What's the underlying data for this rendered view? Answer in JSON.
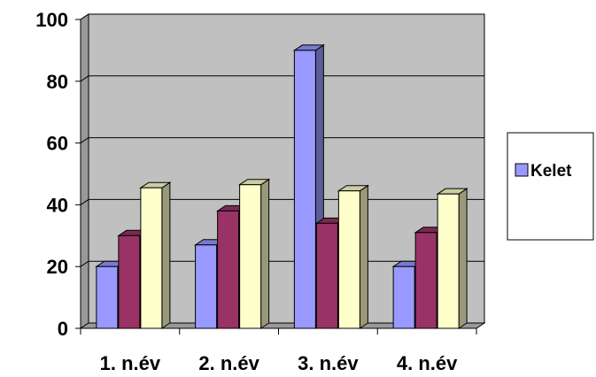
{
  "chart_data": {
    "type": "bar",
    "categories": [
      "1. n.év",
      "2. n.év",
      "3. n.év",
      "4. n.év"
    ],
    "series": [
      {
        "name": "Kelet",
        "values": [
          20,
          27,
          90,
          20
        ],
        "color": "#9999ff"
      },
      {
        "values": [
          30,
          38,
          34,
          31
        ],
        "color": "#993366"
      },
      {
        "values": [
          45.5,
          46.5,
          44.5,
          43.5
        ],
        "color": "#ffffcc"
      }
    ],
    "y_ticks": [
      "0",
      "20",
      "40",
      "60",
      "80",
      "100"
    ],
    "ylim": [
      0,
      100
    ],
    "grid": true,
    "wall_color": "#c0c0c0",
    "legend": {
      "position": "right",
      "entries": [
        "Kelet"
      ]
    }
  }
}
